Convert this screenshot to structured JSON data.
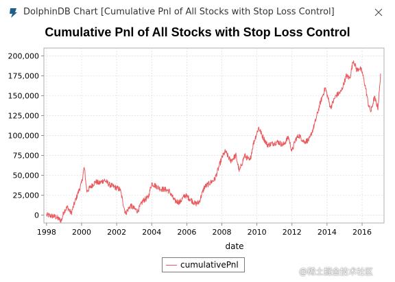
{
  "window": {
    "title": "DolphinDB Chart [Cumulative Pnl of All Stocks with Stop Loss Control]",
    "app_icon": "dolphindb-logo-icon",
    "close_icon": "close-icon"
  },
  "watermark": "@稀土掘金技术社区",
  "chart_data": {
    "type": "line",
    "title": "Cumulative Pnl of All Stocks with Stop Loss Control",
    "xlabel": "date",
    "ylabel": "",
    "x_ticks": [
      "1998",
      "2000",
      "2002",
      "2004",
      "2006",
      "2008",
      "2010",
      "2012",
      "2014",
      "2016"
    ],
    "y_ticks": [
      "0",
      "25,000",
      "50,000",
      "75,000",
      "100,000",
      "125,000",
      "150,000",
      "175,000",
      "200,000"
    ],
    "xlim": [
      1997.85,
      2017.25
    ],
    "ylim": [
      -10000,
      210000
    ],
    "grid": true,
    "legend": "bottom-center",
    "line_color": "#e8585c",
    "series": [
      {
        "name": "cumulativePnl",
        "x": [
          1998.0,
          1998.5,
          1998.7,
          1998.85,
          1999.0,
          1999.2,
          1999.4,
          1999.6,
          1999.8,
          2000.0,
          2000.15,
          2000.3,
          2000.5,
          2000.8,
          2001.0,
          2001.3,
          2001.6,
          2001.9,
          2002.2,
          2002.5,
          2002.8,
          2003.0,
          2003.2,
          2003.5,
          2003.8,
          2004.0,
          2004.2,
          2004.5,
          2004.8,
          2005.0,
          2005.3,
          2005.6,
          2005.9,
          2006.2,
          2006.5,
          2006.7,
          2007.0,
          2007.3,
          2007.6,
          2007.9,
          2008.0,
          2008.2,
          2008.5,
          2008.8,
          2009.0,
          2009.3,
          2009.6,
          2009.8,
          2010.1,
          2010.3,
          2010.6,
          2010.9,
          2011.2,
          2011.5,
          2011.8,
          2012.0,
          2012.2,
          2012.4,
          2012.7,
          2013.0,
          2013.3,
          2013.6,
          2013.9,
          2014.2,
          2014.5,
          2014.8,
          2015.1,
          2015.3,
          2015.5,
          2015.7,
          2015.85,
          2016.0,
          2016.2,
          2016.35,
          2016.5,
          2016.7,
          2016.9,
          2017.0,
          2017.05
        ],
        "values": [
          0,
          -2000,
          -5000,
          -7000,
          5000,
          10000,
          2000,
          15000,
          28000,
          40000,
          60000,
          30000,
          35000,
          42000,
          40000,
          44000,
          38000,
          35000,
          32000,
          2000,
          12000,
          8000,
          5000,
          18000,
          22000,
          40000,
          37000,
          33000,
          32000,
          30000,
          18000,
          16000,
          25000,
          20000,
          14000,
          16000,
          35000,
          40000,
          45000,
          65000,
          72000,
          80000,
          68000,
          75000,
          55000,
          75000,
          68000,
          90000,
          110000,
          100000,
          88000,
          90000,
          92000,
          88000,
          98000,
          80000,
          95000,
          100000,
          92000,
          95000,
          115000,
          140000,
          160000,
          135000,
          150000,
          155000,
          175000,
          172000,
          195000,
          182000,
          185000,
          180000,
          160000,
          140000,
          130000,
          148000,
          135000,
          160000,
          178000
        ]
      }
    ]
  }
}
